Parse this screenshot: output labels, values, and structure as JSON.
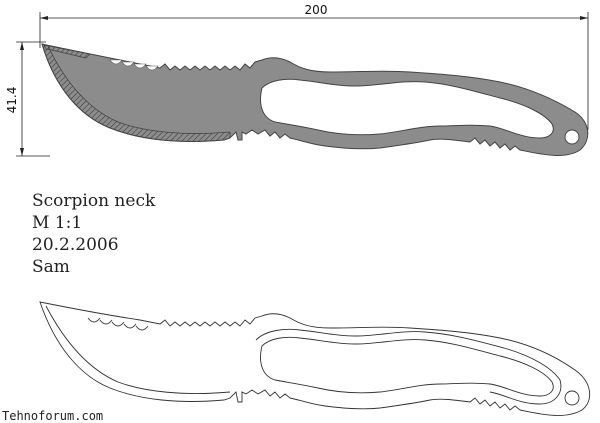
{
  "dimensions": {
    "length": "200",
    "height": "41.4"
  },
  "title_block": {
    "name": "Scorpion neck",
    "scale": "M 1:1",
    "date": "20.2.2006",
    "author": "Sam"
  },
  "watermark": "Tehnoforum.com"
}
